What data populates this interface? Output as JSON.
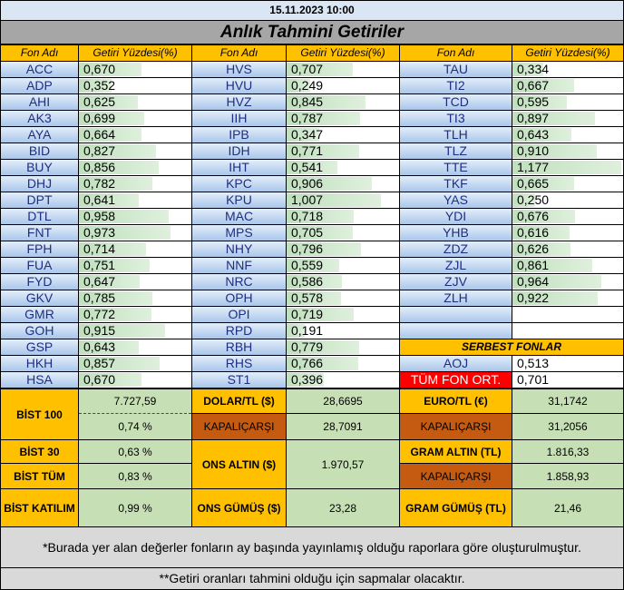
{
  "header": {
    "datetime": "15.11.2023 10:00",
    "title": "Anlık Tahmini Getiriler"
  },
  "columns": {
    "code_label": "Fon Adı",
    "value_label": "Getiri Yüzdesi(%)"
  },
  "funds_col1": [
    {
      "code": "ACC",
      "value": "0,670"
    },
    {
      "code": "ADP",
      "value": "0,352"
    },
    {
      "code": "AHI",
      "value": "0,625"
    },
    {
      "code": "AK3",
      "value": "0,699"
    },
    {
      "code": "AYA",
      "value": "0,664"
    },
    {
      "code": "BID",
      "value": "0,827"
    },
    {
      "code": "BUY",
      "value": "0,856"
    },
    {
      "code": "DHJ",
      "value": "0,782"
    },
    {
      "code": "DPT",
      "value": "0,641"
    },
    {
      "code": "DTL",
      "value": "0,958"
    },
    {
      "code": "FNT",
      "value": "0,973"
    },
    {
      "code": "FPH",
      "value": "0,714"
    },
    {
      "code": "FUA",
      "value": "0,751"
    },
    {
      "code": "FYD",
      "value": "0,647"
    },
    {
      "code": "GKV",
      "value": "0,785"
    },
    {
      "code": "GMR",
      "value": "0,772"
    },
    {
      "code": "GOH",
      "value": "0,915"
    },
    {
      "code": "GSP",
      "value": "0,643"
    },
    {
      "code": "HKH",
      "value": "0,857"
    },
    {
      "code": "HSA",
      "value": "0,670"
    }
  ],
  "funds_col2": [
    {
      "code": "HVS",
      "value": "0,707"
    },
    {
      "code": "HVU",
      "value": "0,249"
    },
    {
      "code": "HVZ",
      "value": "0,845"
    },
    {
      "code": "IIH",
      "value": "0,787"
    },
    {
      "code": "IPB",
      "value": "0,347"
    },
    {
      "code": "IDH",
      "value": "0,771"
    },
    {
      "code": "IHT",
      "value": "0,541"
    },
    {
      "code": "KPC",
      "value": "0,906"
    },
    {
      "code": "KPU",
      "value": "1,007"
    },
    {
      "code": "MAC",
      "value": "0,718"
    },
    {
      "code": "MPS",
      "value": "0,705"
    },
    {
      "code": "NHY",
      "value": "0,796"
    },
    {
      "code": "NNF",
      "value": "0,559"
    },
    {
      "code": "NRC",
      "value": "0,586"
    },
    {
      "code": "OPH",
      "value": "0,578"
    },
    {
      "code": "OPI",
      "value": "0,719"
    },
    {
      "code": "RPD",
      "value": "0,191"
    },
    {
      "code": "RBH",
      "value": "0,779"
    },
    {
      "code": "RHS",
      "value": "0,766"
    },
    {
      "code": "ST1",
      "value": "0,396"
    }
  ],
  "funds_col3": [
    {
      "code": "TAU",
      "value": "0,334"
    },
    {
      "code": "TI2",
      "value": "0,667"
    },
    {
      "code": "TCD",
      "value": "0,595"
    },
    {
      "code": "TI3",
      "value": "0,897"
    },
    {
      "code": "TLH",
      "value": "0,643"
    },
    {
      "code": "TLZ",
      "value": "0,910"
    },
    {
      "code": "TTE",
      "value": "1,177"
    },
    {
      "code": "TKF",
      "value": "0,665"
    },
    {
      "code": "YAS",
      "value": "0,250"
    },
    {
      "code": "YDI",
      "value": "0,676"
    },
    {
      "code": "YHB",
      "value": "0,616"
    },
    {
      "code": "ZDZ",
      "value": "0,626"
    },
    {
      "code": "ZJL",
      "value": "0,861"
    },
    {
      "code": "ZJV",
      "value": "0,964"
    },
    {
      "code": "ZLH",
      "value": "0,922"
    }
  ],
  "serbest": {
    "label": "SERBEST FONLAR",
    "code": "AOJ",
    "value": "0,513",
    "avg_label": "TÜM FON ORT.",
    "avg_value": "0,701"
  },
  "market": {
    "bist100_label": "BİST 100",
    "bist100_value": "7.727,59",
    "bist100_pct": "0,74 %",
    "bist30_label": "BİST 30",
    "bist30_pct": "0,63 %",
    "bisttum_label": "BİST TÜM",
    "bisttum_pct": "0,83 %",
    "bistkat_label": "BİST KATILIM",
    "bistkat_pct": "0,99 %",
    "dolar_label": "DOLAR/TL ($)",
    "dolar_value": "28,6695",
    "kapali_label": "KAPALIÇARŞI",
    "dolar_kapali": "28,7091",
    "ons_altin_label": "ONS ALTIN ($)",
    "ons_altin_value": "1.970,57",
    "ons_gumus_label": "ONS GÜMÜŞ ($)",
    "ons_gumus_value": "23,28",
    "euro_label": "EURO/TL (€)",
    "euro_value": "31,1742",
    "euro_kapali": "31,2056",
    "gram_altin_label": "GRAM ALTIN (TL)",
    "gram_altin_value": "1.816,33",
    "gram_altin_kapali": "1.858,93",
    "gram_gumus_label": "GRAM GÜMÜŞ (TL)",
    "gram_gumus_value": "21,46"
  },
  "notes": {
    "note1": "*Burada yer alan değerler fonların ay başında yayınlamış olduğu raporlara göre oluşturulmuştur.",
    "note2": "**Getiri oranları tahmini olduğu için sapmalar olacaktır."
  },
  "colors": {
    "header_gold": "#ffc000",
    "bar_green": "#bfe0bd",
    "code_blue": "#aac6ea",
    "alert_red": "#ff0000",
    "kapali_brown": "#c55a11",
    "market_green": "#c6dfb4"
  }
}
